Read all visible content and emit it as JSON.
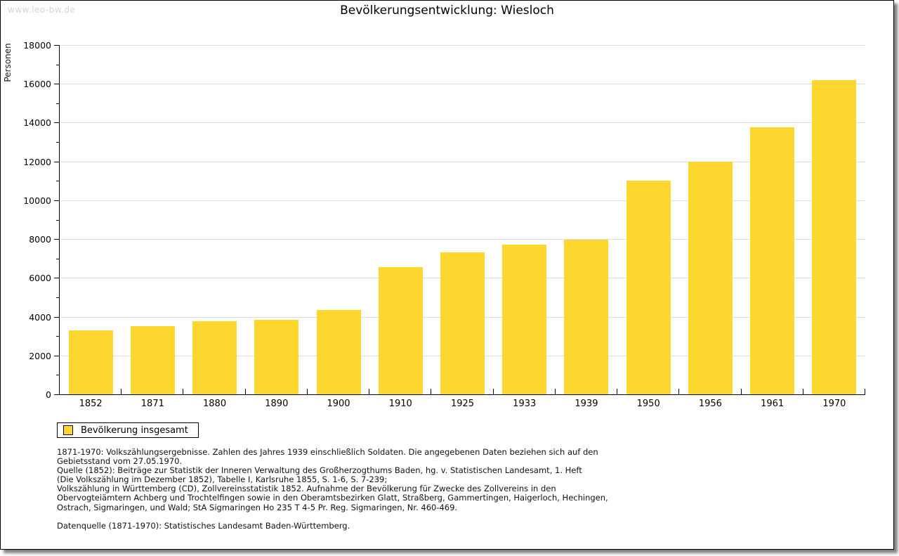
{
  "watermark": "www.leo-bw.de",
  "title": "Bevölkerungsentwicklung: Wiesloch",
  "chart_data": {
    "type": "bar",
    "title": "Bevölkerungsentwicklung: Wiesloch",
    "xlabel": "",
    "ylabel": "Personen",
    "categories": [
      "1852",
      "1871",
      "1880",
      "1890",
      "1900",
      "1910",
      "1925",
      "1933",
      "1939",
      "1950",
      "1956",
      "1961",
      "1970"
    ],
    "values": [
      3300,
      3500,
      3750,
      3850,
      4350,
      6550,
      7300,
      7700,
      7950,
      11000,
      12000,
      13750,
      16200
    ],
    "ylim": [
      0,
      18000
    ],
    "y_major_tick_step": 2000,
    "y_minor_tick_step": 1000,
    "grid": true,
    "bar_color": "#fdd62e",
    "gridline_color": "#dddddd",
    "legend": {
      "label": "Bevölkerung insgesamt",
      "position": "bottom-left"
    }
  },
  "footnotes": {
    "lines": [
      "1871-1970: Volkszählungsergebnisse. Zahlen des Jahres 1939 einschließlich Soldaten. Die angegebenen Daten beziehen sich auf den",
      "Gebietsstand vom 27.05.1970.",
      "Quelle (1852): Beiträge zur Statistik der Inneren Verwaltung des Großherzogthums Baden, hg. v. Statistischen Landesamt, 1. Heft",
      "(Die Volkszählung im Dezember 1852), Tabelle I, Karlsruhe 1855, S. 1-6, S. 7-239;",
      "Volkszählung in Württemberg (CD), Zollvereinsstatistik 1852. Aufnahme der Bevölkerung für Zwecke des Zollvereins in den",
      "Obervogteiämtern Achberg und Trochtelfingen sowie in den Oberamtsbezirken Glatt, Straßberg, Gammertingen, Haigerloch, Hechingen,",
      "Ostrach, Sigmaringen, und Wald; StA Sigmaringen Ho 235 T 4-5 Pr. Reg. Sigmaringen, Nr. 460-469."
    ],
    "datasource": "Datenquelle (1871-1970): Statistisches Landesamt Baden-Württemberg."
  }
}
